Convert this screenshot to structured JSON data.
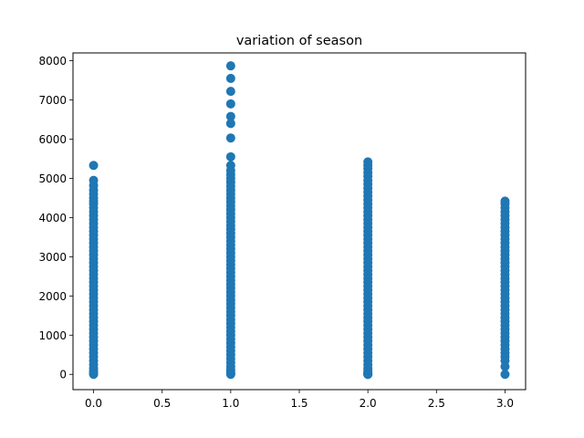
{
  "chart_data": {
    "type": "scatter",
    "title": "variation of season",
    "xlabel": "",
    "ylabel": "",
    "xlim": [
      -0.15,
      3.15
    ],
    "ylim": [
      -390,
      8200
    ],
    "xticks": [
      0.0,
      0.5,
      1.0,
      1.5,
      2.0,
      2.5,
      3.0
    ],
    "xtick_labels": [
      "0.0",
      "0.5",
      "1.0",
      "1.5",
      "2.0",
      "2.5",
      "3.0"
    ],
    "yticks": [
      0,
      1000,
      2000,
      3000,
      4000,
      5000,
      6000,
      7000,
      8000
    ],
    "ytick_labels": [
      "0",
      "1000",
      "2000",
      "3000",
      "4000",
      "5000",
      "6000",
      "7000",
      "8000"
    ],
    "grid": false,
    "marker_color": "#1f77b4",
    "series": [
      {
        "x": [
          0,
          0,
          0,
          0,
          0,
          0,
          0,
          0,
          0,
          0,
          0,
          0,
          0,
          0,
          0,
          0,
          0,
          0,
          0,
          0,
          0,
          0,
          0,
          0,
          0,
          0,
          0,
          0,
          0,
          0,
          0,
          0,
          0,
          0,
          0,
          0,
          0,
          0,
          0,
          0,
          0,
          0,
          0,
          0,
          0,
          0,
          0,
          0,
          0,
          0,
          0,
          0,
          0
        ],
        "y": [
          5330,
          4950,
          4820,
          4700,
          4600,
          4500,
          4420,
          4350,
          4250,
          4150,
          4050,
          3950,
          3850,
          3750,
          3650,
          3550,
          3450,
          3350,
          3250,
          3150,
          3050,
          2950,
          2850,
          2750,
          2650,
          2550,
          2450,
          2350,
          2250,
          2150,
          2050,
          1950,
          1850,
          1750,
          1650,
          1550,
          1450,
          1350,
          1250,
          1150,
          1050,
          950,
          850,
          750,
          650,
          550,
          450,
          350,
          250,
          150,
          80,
          30,
          0
        ]
      },
      {
        "x": [
          1,
          1,
          1,
          1,
          1,
          1,
          1,
          1,
          1,
          1,
          1,
          1,
          1,
          1,
          1,
          1,
          1,
          1,
          1,
          1,
          1,
          1,
          1,
          1,
          1,
          1,
          1,
          1,
          1,
          1,
          1,
          1,
          1,
          1,
          1,
          1,
          1,
          1,
          1,
          1,
          1,
          1,
          1,
          1,
          1,
          1,
          1,
          1,
          1,
          1,
          1,
          1,
          1,
          1,
          1,
          1,
          1,
          1,
          1,
          1,
          1,
          1,
          1,
          1
        ],
        "y": [
          7870,
          7550,
          7220,
          6900,
          6580,
          6400,
          6030,
          5550,
          5330,
          5200,
          5100,
          5000,
          4900,
          4800,
          4700,
          4600,
          4500,
          4400,
          4300,
          4200,
          4100,
          4000,
          3900,
          3800,
          3700,
          3600,
          3500,
          3400,
          3300,
          3200,
          3100,
          3000,
          2900,
          2800,
          2700,
          2600,
          2500,
          2400,
          2300,
          2200,
          2100,
          2000,
          1900,
          1800,
          1700,
          1600,
          1500,
          1400,
          1300,
          1200,
          1100,
          1000,
          900,
          800,
          700,
          600,
          500,
          400,
          300,
          200,
          120,
          60,
          20,
          0
        ]
      },
      {
        "x": [
          2,
          2,
          2,
          2,
          2,
          2,
          2,
          2,
          2,
          2,
          2,
          2,
          2,
          2,
          2,
          2,
          2,
          2,
          2,
          2,
          2,
          2,
          2,
          2,
          2,
          2,
          2,
          2,
          2,
          2,
          2,
          2,
          2,
          2,
          2,
          2,
          2,
          2,
          2,
          2,
          2,
          2,
          2,
          2,
          2,
          2,
          2,
          2,
          2,
          2,
          2,
          2,
          2,
          2,
          2,
          2,
          2,
          2,
          2,
          2
        ],
        "y": [
          5420,
          5330,
          5250,
          5150,
          5050,
          4950,
          4850,
          4750,
          4650,
          4550,
          4450,
          4350,
          4250,
          4150,
          4050,
          3950,
          3850,
          3750,
          3650,
          3550,
          3450,
          3350,
          3250,
          3150,
          3050,
          2950,
          2850,
          2750,
          2650,
          2550,
          2450,
          2350,
          2250,
          2150,
          2050,
          1950,
          1850,
          1750,
          1650,
          1550,
          1450,
          1350,
          1250,
          1150,
          1050,
          950,
          850,
          750,
          650,
          550,
          450,
          350,
          250,
          150,
          80,
          30,
          10,
          0,
          0,
          0
        ]
      },
      {
        "x": [
          3,
          3,
          3,
          3,
          3,
          3,
          3,
          3,
          3,
          3,
          3,
          3,
          3,
          3,
          3,
          3,
          3,
          3,
          3,
          3,
          3,
          3,
          3,
          3,
          3,
          3,
          3,
          3,
          3,
          3,
          3,
          3,
          3,
          3,
          3,
          3,
          3,
          3,
          3,
          3,
          3,
          3,
          3,
          3
        ],
        "y": [
          4420,
          4350,
          4250,
          4150,
          4050,
          3950,
          3850,
          3750,
          3650,
          3550,
          3450,
          3350,
          3250,
          3150,
          3050,
          2950,
          2850,
          2750,
          2650,
          2550,
          2450,
          2350,
          2250,
          2150,
          2050,
          1950,
          1850,
          1750,
          1650,
          1550,
          1450,
          1350,
          1250,
          1150,
          1050,
          950,
          850,
          750,
          650,
          550,
          450,
          350,
          200,
          0
        ]
      }
    ]
  }
}
